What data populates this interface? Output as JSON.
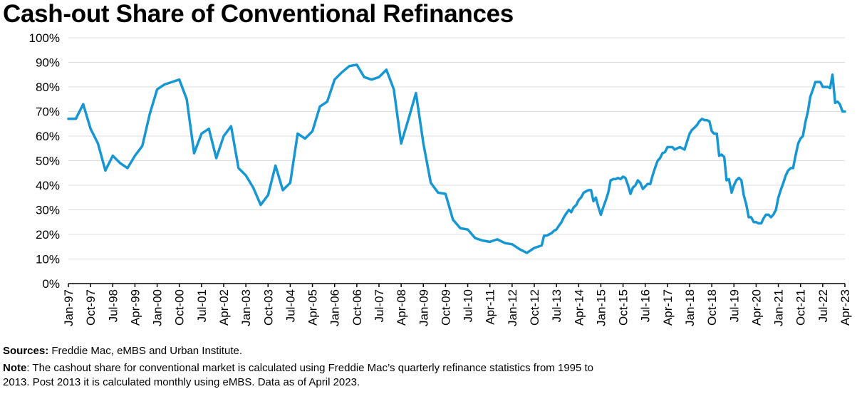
{
  "chart_data": {
    "type": "line",
    "title": "Cash-out Share of Conventional Refinances",
    "xlabel": "",
    "ylabel": "",
    "ylim": [
      0,
      100
    ],
    "yticks": [
      "0%",
      "10%",
      "20%",
      "30%",
      "40%",
      "50%",
      "60%",
      "70%",
      "80%",
      "90%",
      "100%"
    ],
    "xticks": [
      "Jan-97",
      "Oct-97",
      "Jul-98",
      "Apr-99",
      "Jan-00",
      "Oct-00",
      "Jul-01",
      "Apr-02",
      "Jan-03",
      "Oct-03",
      "Jul-04",
      "Apr-05",
      "Jan-06",
      "Oct-06",
      "Jul-07",
      "Apr-08",
      "Jan-09",
      "Oct-09",
      "Jul-10",
      "Apr-11",
      "Jan-12",
      "Oct-12",
      "Jul-13",
      "Apr-14",
      "Jan-15",
      "Oct-15",
      "Jul-16",
      "Apr-17",
      "Jan-18",
      "Oct-18",
      "Jul-19",
      "Apr-20",
      "Jan-21",
      "Oct-21",
      "Jul-22",
      "Apr-23"
    ],
    "x_start": "Jan-97",
    "x_end": "Apr-23",
    "color": "#1696d2",
    "series": [
      {
        "name": "Cash-out share",
        "points": [
          [
            1997.0,
            67
          ],
          [
            1997.25,
            67
          ],
          [
            1997.5,
            73
          ],
          [
            1997.75,
            63
          ],
          [
            1998.0,
            57
          ],
          [
            1998.25,
            46
          ],
          [
            1998.5,
            52
          ],
          [
            1998.75,
            49
          ],
          [
            1999.0,
            47
          ],
          [
            1999.25,
            52
          ],
          [
            1999.5,
            56
          ],
          [
            1999.75,
            69
          ],
          [
            2000.0,
            79
          ],
          [
            2000.25,
            81
          ],
          [
            2000.5,
            82
          ],
          [
            2000.75,
            83
          ],
          [
            2001.0,
            75
          ],
          [
            2001.25,
            53
          ],
          [
            2001.5,
            61
          ],
          [
            2001.75,
            63
          ],
          [
            2002.0,
            51
          ],
          [
            2002.25,
            60
          ],
          [
            2002.5,
            64
          ],
          [
            2002.75,
            47
          ],
          [
            2003.0,
            44
          ],
          [
            2003.25,
            39
          ],
          [
            2003.5,
            32
          ],
          [
            2003.75,
            36
          ],
          [
            2004.0,
            48
          ],
          [
            2004.25,
            38
          ],
          [
            2004.5,
            41
          ],
          [
            2004.75,
            61
          ],
          [
            2005.0,
            59
          ],
          [
            2005.25,
            62
          ],
          [
            2005.5,
            72
          ],
          [
            2005.75,
            74
          ],
          [
            2006.0,
            83
          ],
          [
            2006.25,
            86
          ],
          [
            2006.5,
            88.5
          ],
          [
            2006.75,
            89
          ],
          [
            2007.0,
            84
          ],
          [
            2007.25,
            83
          ],
          [
            2007.5,
            84
          ],
          [
            2007.75,
            87
          ],
          [
            2008.0,
            79
          ],
          [
            2008.25,
            57
          ],
          [
            2008.5,
            67
          ],
          [
            2008.75,
            77.5
          ],
          [
            2009.0,
            57
          ],
          [
            2009.25,
            41
          ],
          [
            2009.5,
            37
          ],
          [
            2009.75,
            36.5
          ],
          [
            2010.0,
            26
          ],
          [
            2010.25,
            22.5
          ],
          [
            2010.5,
            22
          ],
          [
            2010.75,
            18.5
          ],
          [
            2011.0,
            17.5
          ],
          [
            2011.25,
            17
          ],
          [
            2011.5,
            18
          ],
          [
            2011.75,
            16.5
          ],
          [
            2012.0,
            16
          ],
          [
            2012.25,
            14
          ],
          [
            2012.5,
            12.5
          ],
          [
            2012.75,
            14.5
          ],
          [
            2013.0,
            15.5
          ],
          [
            2013.08,
            19.5
          ],
          [
            2013.17,
            19.5
          ],
          [
            2013.25,
            20
          ],
          [
            2013.33,
            20.5
          ],
          [
            2013.42,
            21.5
          ],
          [
            2013.5,
            22
          ],
          [
            2013.58,
            23.5
          ],
          [
            2013.67,
            25
          ],
          [
            2013.75,
            27
          ],
          [
            2013.83,
            28.5
          ],
          [
            2013.92,
            30
          ],
          [
            2014.0,
            29
          ],
          [
            2014.08,
            31
          ],
          [
            2014.17,
            32
          ],
          [
            2014.25,
            34
          ],
          [
            2014.33,
            35
          ],
          [
            2014.42,
            37
          ],
          [
            2014.5,
            37.5
          ],
          [
            2014.58,
            38
          ],
          [
            2014.67,
            38
          ],
          [
            2014.75,
            33.5
          ],
          [
            2014.83,
            35
          ],
          [
            2014.92,
            31
          ],
          [
            2015.0,
            28
          ],
          [
            2015.08,
            31
          ],
          [
            2015.17,
            34
          ],
          [
            2015.25,
            37
          ],
          [
            2015.33,
            42
          ],
          [
            2015.42,
            42.5
          ],
          [
            2015.5,
            42.5
          ],
          [
            2015.58,
            43
          ],
          [
            2015.67,
            42.5
          ],
          [
            2015.75,
            43.5
          ],
          [
            2015.83,
            43
          ],
          [
            2015.92,
            40
          ],
          [
            2016.0,
            36.5
          ],
          [
            2016.08,
            39
          ],
          [
            2016.17,
            40
          ],
          [
            2016.25,
            42
          ],
          [
            2016.33,
            41
          ],
          [
            2016.42,
            38.5
          ],
          [
            2016.5,
            39.5
          ],
          [
            2016.58,
            40.5
          ],
          [
            2016.67,
            40.5
          ],
          [
            2016.75,
            44
          ],
          [
            2016.83,
            47
          ],
          [
            2016.92,
            50
          ],
          [
            2017.0,
            51
          ],
          [
            2017.08,
            53
          ],
          [
            2017.17,
            53.5
          ],
          [
            2017.25,
            55.5
          ],
          [
            2017.33,
            55.5
          ],
          [
            2017.42,
            55.5
          ],
          [
            2017.5,
            54.5
          ],
          [
            2017.58,
            55
          ],
          [
            2017.67,
            55.5
          ],
          [
            2017.75,
            55
          ],
          [
            2017.83,
            54.5
          ],
          [
            2017.92,
            58
          ],
          [
            2018.0,
            61
          ],
          [
            2018.08,
            62.5
          ],
          [
            2018.17,
            63.5
          ],
          [
            2018.25,
            64.5
          ],
          [
            2018.33,
            66
          ],
          [
            2018.42,
            67
          ],
          [
            2018.5,
            66.5
          ],
          [
            2018.58,
            66.5
          ],
          [
            2018.67,
            66
          ],
          [
            2018.75,
            62
          ],
          [
            2018.83,
            61
          ],
          [
            2018.92,
            61
          ],
          [
            2019.0,
            52
          ],
          [
            2019.08,
            52.5
          ],
          [
            2019.17,
            51.5
          ],
          [
            2019.25,
            42
          ],
          [
            2019.33,
            42.5
          ],
          [
            2019.42,
            37
          ],
          [
            2019.5,
            40
          ],
          [
            2019.58,
            42
          ],
          [
            2019.67,
            43
          ],
          [
            2019.75,
            42
          ],
          [
            2019.83,
            36
          ],
          [
            2019.92,
            32
          ],
          [
            2020.0,
            27
          ],
          [
            2020.08,
            27
          ],
          [
            2020.17,
            25
          ],
          [
            2020.25,
            25
          ],
          [
            2020.33,
            24.5
          ],
          [
            2020.42,
            24.5
          ],
          [
            2020.5,
            26.5
          ],
          [
            2020.58,
            28
          ],
          [
            2020.67,
            28
          ],
          [
            2020.75,
            27
          ],
          [
            2020.83,
            28
          ],
          [
            2020.92,
            30
          ],
          [
            2021.0,
            35
          ],
          [
            2021.08,
            38
          ],
          [
            2021.17,
            41
          ],
          [
            2021.25,
            44
          ],
          [
            2021.33,
            46
          ],
          [
            2021.42,
            47
          ],
          [
            2021.5,
            47
          ],
          [
            2021.58,
            52
          ],
          [
            2021.67,
            57
          ],
          [
            2021.75,
            59
          ],
          [
            2021.83,
            60
          ],
          [
            2021.92,
            66
          ],
          [
            2022.0,
            70
          ],
          [
            2022.08,
            76
          ],
          [
            2022.17,
            79
          ],
          [
            2022.25,
            82
          ],
          [
            2022.33,
            82
          ],
          [
            2022.42,
            82
          ],
          [
            2022.5,
            80
          ],
          [
            2022.58,
            80
          ],
          [
            2022.67,
            80
          ],
          [
            2022.75,
            79.5
          ],
          [
            2022.83,
            85
          ],
          [
            2022.92,
            73.5
          ],
          [
            2023.0,
            74
          ],
          [
            2023.08,
            73
          ],
          [
            2023.17,
            70
          ],
          [
            2023.25,
            70
          ]
        ]
      }
    ]
  },
  "footer": {
    "sources_label": "Sources:",
    "sources_text": " Freddie Mac, eMBS and Urban Institute.",
    "note_label": "Note",
    "note_line1": ": The cashout share for conventional market is calculated using Freddie Mac’s quarterly refinance statistics from 1995 to",
    "note_line2": "2013. Post 2013 it is calculated monthly using eMBS. Data as of April 2023."
  }
}
